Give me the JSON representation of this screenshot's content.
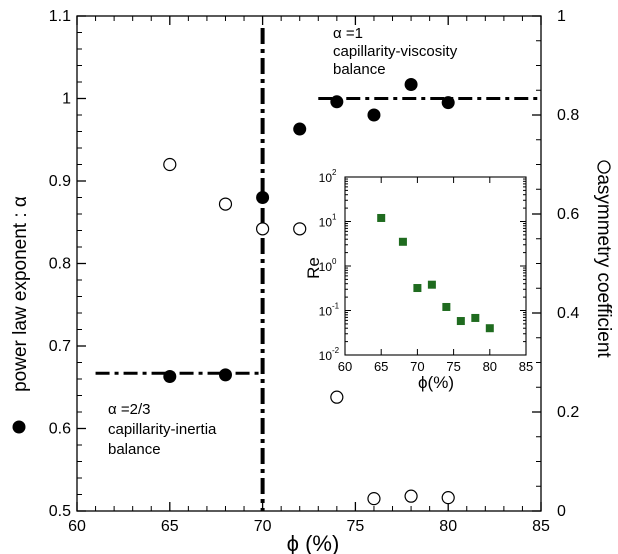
{
  "chart_data": [
    {
      "type": "scatter",
      "xlabel": "ϕ (%)",
      "ylabel": "power law exponent : α",
      "y2label": "asymmetry coefficient",
      "xlim": [
        60,
        85
      ],
      "ylim": [
        0.5,
        1.1
      ],
      "y2lim": [
        0,
        1
      ],
      "xticks": [
        "60",
        "65",
        "70",
        "75",
        "80",
        "85"
      ],
      "yticks": [
        "0.5",
        "0.6",
        "0.7",
        "0.8",
        "0.9",
        "1",
        "1.1"
      ],
      "y2ticks": [
        "0",
        "0.2",
        "0.4",
        "0.6",
        "0.8",
        "1"
      ],
      "grid": false,
      "series": [
        {
          "marker": "filled-circle",
          "axis": "left",
          "x": [
            65,
            68,
            70,
            72,
            74,
            76,
            78,
            80
          ],
          "y": [
            0.663,
            0.665,
            0.88,
            0.963,
            0.996,
            0.98,
            1.017,
            0.995
          ]
        },
        {
          "marker": "open-circle",
          "axis": "right",
          "x": [
            65,
            68,
            70,
            72,
            74,
            76,
            78,
            80
          ],
          "y": [
            0.7,
            0.62,
            0.57,
            0.57,
            0.23,
            0.025,
            0.03,
            0.027
          ]
        }
      ],
      "reference_lines": [
        {
          "orientation": "vertical",
          "x": 70,
          "style": "dash-dot"
        },
        {
          "orientation": "horizontal",
          "y": 0.667,
          "x_range": [
            61,
            70
          ],
          "style": "dash-dot"
        },
        {
          "orientation": "horizontal",
          "y": 1.0,
          "x_range": [
            73,
            85
          ],
          "style": "dash-dot"
        }
      ],
      "annotations": [
        {
          "lines": [
            "α =1",
            "capillarity-viscosity",
            "balance"
          ]
        },
        {
          "lines": [
            "α =2/3",
            "capillarity-inertia",
            "balance"
          ]
        }
      ],
      "legend_markers": {
        "left": "filled-circle",
        "right": "open-circle"
      }
    },
    {
      "type": "scatter",
      "placement": "inset",
      "xlabel": "ϕ(%)",
      "ylabel": "Re",
      "xlim": [
        60,
        85
      ],
      "ylim": [
        0.01,
        100
      ],
      "yscale": "log",
      "xticks": [
        "60",
        "65",
        "70",
        "75",
        "80",
        "85"
      ],
      "yticks_base": [
        "10",
        "10",
        "10",
        "10",
        "10"
      ],
      "yticks_exp": [
        "-2",
        "-1",
        "0",
        "1",
        "2"
      ],
      "grid": false,
      "series": [
        {
          "marker": "filled-square",
          "color": "#1f6b1f",
          "x": [
            65,
            68,
            70,
            72,
            74,
            76,
            78,
            80
          ],
          "y": [
            12,
            3.5,
            0.32,
            0.38,
            0.12,
            0.058,
            0.068,
            0.04
          ]
        }
      ]
    }
  ]
}
